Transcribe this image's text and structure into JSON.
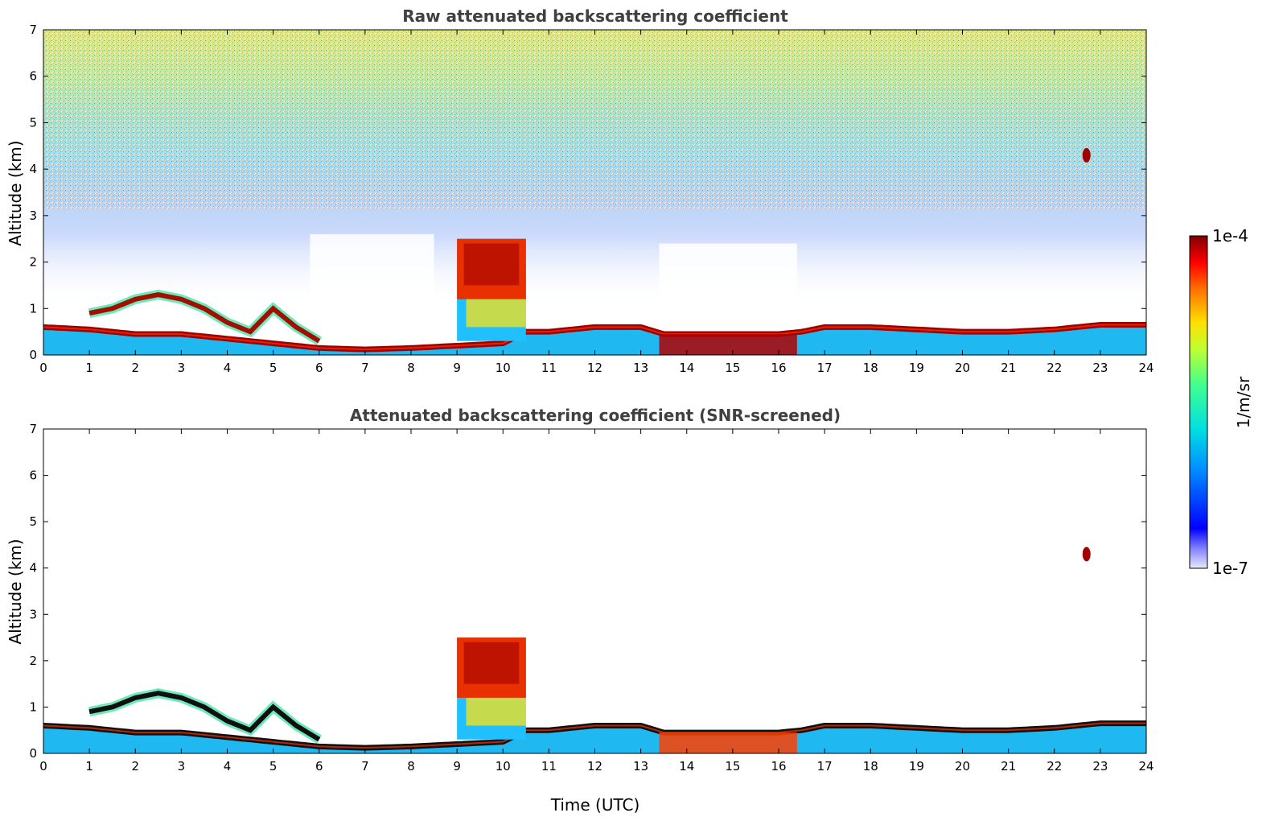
{
  "chart_data": [
    {
      "type": "heatmap",
      "title": "Raw attenuated backscattering coefficient",
      "xlabel": "",
      "ylabel": "Altitude (km)",
      "xlim": [
        0,
        24
      ],
      "ylim": [
        0,
        7
      ],
      "x_ticks": [
        "0",
        "1",
        "2",
        "3",
        "4",
        "5",
        "6",
        "7",
        "8",
        "9",
        "10",
        "11",
        "12",
        "13",
        "14",
        "15",
        "16",
        "17",
        "18",
        "19",
        "20",
        "21",
        "22",
        "23",
        "24"
      ],
      "y_ticks": [
        "0",
        "1",
        "2",
        "3",
        "4",
        "5",
        "6",
        "7"
      ],
      "features": {
        "boundary_layer_top_km": [
          [
            0,
            0.6
          ],
          [
            1,
            0.55
          ],
          [
            1.5,
            0.5
          ],
          [
            2,
            0.45
          ],
          [
            2.5,
            0.45
          ],
          [
            3,
            0.45
          ],
          [
            3.5,
            0.4
          ],
          [
            4,
            0.35
          ],
          [
            5,
            0.25
          ],
          [
            6,
            0.15
          ],
          [
            7,
            0.12
          ],
          [
            8,
            0.15
          ],
          [
            9,
            0.2
          ],
          [
            10,
            0.25
          ],
          [
            10.5,
            0.5
          ],
          [
            11,
            0.5
          ],
          [
            12,
            0.6
          ],
          [
            13,
            0.6
          ],
          [
            13.5,
            0.45
          ],
          [
            14,
            0.45
          ],
          [
            15,
            0.45
          ],
          [
            16,
            0.45
          ],
          [
            16.5,
            0.5
          ],
          [
            17,
            0.6
          ],
          [
            18,
            0.6
          ],
          [
            19,
            0.55
          ],
          [
            20,
            0.5
          ],
          [
            21,
            0.5
          ],
          [
            22,
            0.55
          ],
          [
            23,
            0.65
          ],
          [
            24,
            0.65
          ]
        ],
        "elevated_layer_km": [
          [
            1,
            0.9
          ],
          [
            1.5,
            1.0
          ],
          [
            2,
            1.2
          ],
          [
            2.5,
            1.3
          ],
          [
            3,
            1.2
          ],
          [
            3.5,
            1.0
          ],
          [
            4,
            0.7
          ],
          [
            4.5,
            0.5
          ],
          [
            5,
            1.0
          ],
          [
            5.5,
            0.6
          ],
          [
            6,
            0.3
          ]
        ],
        "convective_cloud_time_utc": [
          9,
          10.5
        ],
        "convective_cloud_top_km": 2.5,
        "small_cloud_time_utc": 22.7,
        "small_cloud_alt_km": 4.3
      },
      "colorbar": {
        "min_label": "1e-7",
        "max_label": "1e-4",
        "label": "1/m/sr",
        "colormap": "jet"
      }
    },
    {
      "type": "heatmap",
      "title": "Attenuated backscattering coefficient (SNR-screened)",
      "xlabel": "Time (UTC)",
      "ylabel": "Altitude (km)",
      "xlim": [
        0,
        24
      ],
      "ylim": [
        0,
        7
      ],
      "x_ticks": [
        "0",
        "1",
        "2",
        "3",
        "4",
        "5",
        "6",
        "7",
        "8",
        "9",
        "10",
        "11",
        "12",
        "13",
        "14",
        "15",
        "16",
        "17",
        "18",
        "19",
        "20",
        "21",
        "22",
        "23",
        "24"
      ],
      "y_ticks": [
        "0",
        "1",
        "2",
        "3",
        "4",
        "5",
        "6",
        "7"
      ]
    }
  ],
  "colorbar": {
    "max_label": "1e-4",
    "min_label": "1e-7",
    "unit_label": "1/m/sr"
  }
}
